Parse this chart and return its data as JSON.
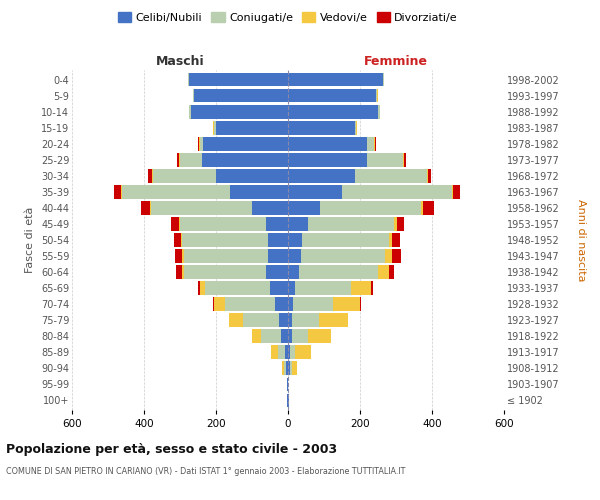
{
  "age_groups": [
    "100+",
    "95-99",
    "90-94",
    "85-89",
    "80-84",
    "75-79",
    "70-74",
    "65-69",
    "60-64",
    "55-59",
    "50-54",
    "45-49",
    "40-44",
    "35-39",
    "30-34",
    "25-29",
    "20-24",
    "15-19",
    "10-14",
    "5-9",
    "0-4"
  ],
  "birth_years": [
    "≤ 1902",
    "1903-1907",
    "1908-1912",
    "1913-1917",
    "1918-1922",
    "1923-1927",
    "1928-1932",
    "1933-1937",
    "1938-1942",
    "1943-1947",
    "1948-1952",
    "1953-1957",
    "1958-1962",
    "1963-1967",
    "1968-1972",
    "1973-1977",
    "1978-1982",
    "1983-1987",
    "1988-1992",
    "1993-1997",
    "1998-2002"
  ],
  "male_celibe": [
    2,
    2,
    5,
    8,
    20,
    25,
    35,
    50,
    60,
    55,
    55,
    60,
    100,
    160,
    200,
    240,
    235,
    200,
    270,
    260,
    275
  ],
  "male_coniugato": [
    0,
    0,
    5,
    20,
    55,
    100,
    140,
    180,
    230,
    235,
    240,
    240,
    280,
    300,
    175,
    60,
    10,
    5,
    5,
    3,
    2
  ],
  "male_vedovo": [
    0,
    0,
    8,
    20,
    25,
    40,
    30,
    15,
    5,
    5,
    3,
    3,
    3,
    3,
    3,
    3,
    3,
    2,
    1,
    1,
    1
  ],
  "male_divorziato": [
    0,
    0,
    0,
    0,
    0,
    0,
    3,
    5,
    15,
    20,
    18,
    22,
    25,
    20,
    10,
    5,
    2,
    1,
    0,
    0,
    0
  ],
  "female_celibe": [
    2,
    1,
    5,
    5,
    10,
    12,
    15,
    20,
    30,
    35,
    40,
    55,
    90,
    150,
    185,
    220,
    220,
    185,
    250,
    245,
    265
  ],
  "female_coniugata": [
    0,
    0,
    5,
    15,
    45,
    75,
    110,
    155,
    220,
    235,
    240,
    240,
    280,
    305,
    200,
    100,
    20,
    5,
    5,
    3,
    2
  ],
  "female_vedova": [
    0,
    0,
    15,
    45,
    65,
    80,
    75,
    55,
    30,
    20,
    10,
    8,
    5,
    3,
    3,
    3,
    2,
    1,
    1,
    1,
    1
  ],
  "female_divorziata": [
    0,
    0,
    0,
    0,
    0,
    0,
    3,
    5,
    15,
    25,
    20,
    18,
    30,
    20,
    10,
    5,
    2,
    1,
    0,
    0,
    0
  ],
  "colors": {
    "celibe": "#4472C4",
    "coniugato": "#BACFB0",
    "vedovo": "#F5C842",
    "divorziato": "#CC0000"
  },
  "legend_labels": [
    "Celibi/Nubili",
    "Coniugati/e",
    "Vedovi/e",
    "Divorziati/e"
  ],
  "title": "Popolazione per età, sesso e stato civile - 2003",
  "subtitle": "COMUNE DI SAN PIETRO IN CARIANO (VR) - Dati ISTAT 1° gennaio 2003 - Elaborazione TUTTITALIA.IT",
  "ylabel": "Fasce di età",
  "ylabel_right": "Anni di nascita",
  "xlabel_left": "Maschi",
  "xlabel_right": "Femmine",
  "xlim": 600,
  "bg_color": "#FFFFFF",
  "grid_color": "#CCCCCC"
}
